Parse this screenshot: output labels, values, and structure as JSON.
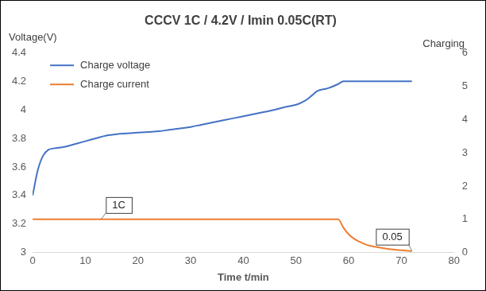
{
  "chart_data": {
    "type": "line",
    "title": "CCCV 1C / 4.2V / Imin 0.05C(RT)",
    "x_label": "Time t/min",
    "y_label": "Voltage(V)",
    "y2_label": "Charging",
    "xlim": [
      0,
      80
    ],
    "xticks": [
      0,
      10,
      20,
      30,
      40,
      50,
      60,
      70,
      80
    ],
    "ylim": [
      3,
      4.4
    ],
    "yticks": [
      3,
      3.2,
      3.4,
      3.6,
      3.8,
      4,
      4.2,
      4.4
    ],
    "y2lim": [
      0,
      6
    ],
    "y2ticks": [
      0,
      1,
      2,
      3,
      4,
      5,
      6
    ],
    "grid": false,
    "legend": "upper left",
    "series": [
      {
        "name": "Charge voltage",
        "color": "#4472c4",
        "x": [
          0,
          1,
          2,
          3,
          4,
          6,
          8,
          10,
          12,
          14,
          16,
          18,
          20,
          22,
          24,
          26,
          28,
          30,
          32,
          34,
          36,
          38,
          40,
          42,
          44,
          46,
          48,
          50,
          51,
          52,
          53,
          54,
          56,
          58,
          59,
          60,
          65,
          70,
          72
        ],
        "values": [
          3.4,
          3.58,
          3.68,
          3.72,
          3.73,
          3.74,
          3.76,
          3.78,
          3.8,
          3.82,
          3.83,
          3.835,
          3.84,
          3.845,
          3.85,
          3.86,
          3.87,
          3.88,
          3.895,
          3.91,
          3.925,
          3.94,
          3.955,
          3.97,
          3.985,
          4.0,
          4.02,
          4.035,
          4.05,
          4.07,
          4.1,
          4.13,
          4.15,
          4.18,
          4.2,
          4.2,
          4.2,
          4.2,
          4.2
        ]
      },
      {
        "name": "Charge current",
        "color": "#ed7d31",
        "axis": "y2",
        "x": [
          0,
          58,
          59,
          60,
          61,
          62,
          63,
          64,
          66,
          68,
          70,
          72
        ],
        "values": [
          1,
          1,
          0.75,
          0.55,
          0.42,
          0.33,
          0.26,
          0.21,
          0.15,
          0.1,
          0.07,
          0.05
        ]
      }
    ],
    "annotations": [
      {
        "text": "1C",
        "x": 13,
        "y": 1,
        "axis": "y2"
      },
      {
        "text": "0.05",
        "x": 72,
        "y": 0.05,
        "axis": "y2"
      }
    ]
  }
}
